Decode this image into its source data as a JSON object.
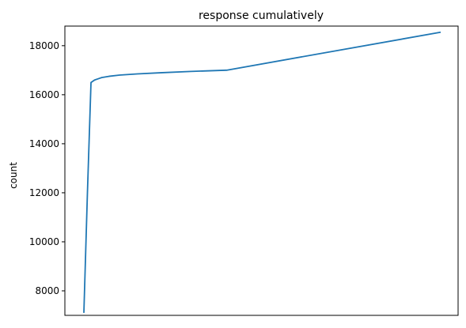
{
  "chart_data": {
    "type": "line",
    "title": "response cumulatively",
    "xlabel": "",
    "ylabel": "count",
    "xticks_visible": false,
    "grid": false,
    "ylim": [
      7000,
      18800
    ],
    "yticks": [
      8000,
      10000,
      12000,
      14000,
      16000,
      18000
    ],
    "x": [
      0,
      1,
      2,
      3,
      4,
      5,
      7,
      10,
      15,
      22,
      30,
      40,
      100
    ],
    "y": [
      7100,
      12000,
      16500,
      16600,
      16650,
      16700,
      16750,
      16800,
      16850,
      16900,
      16950,
      17000,
      18550
    ],
    "color": "#1f77b4"
  }
}
